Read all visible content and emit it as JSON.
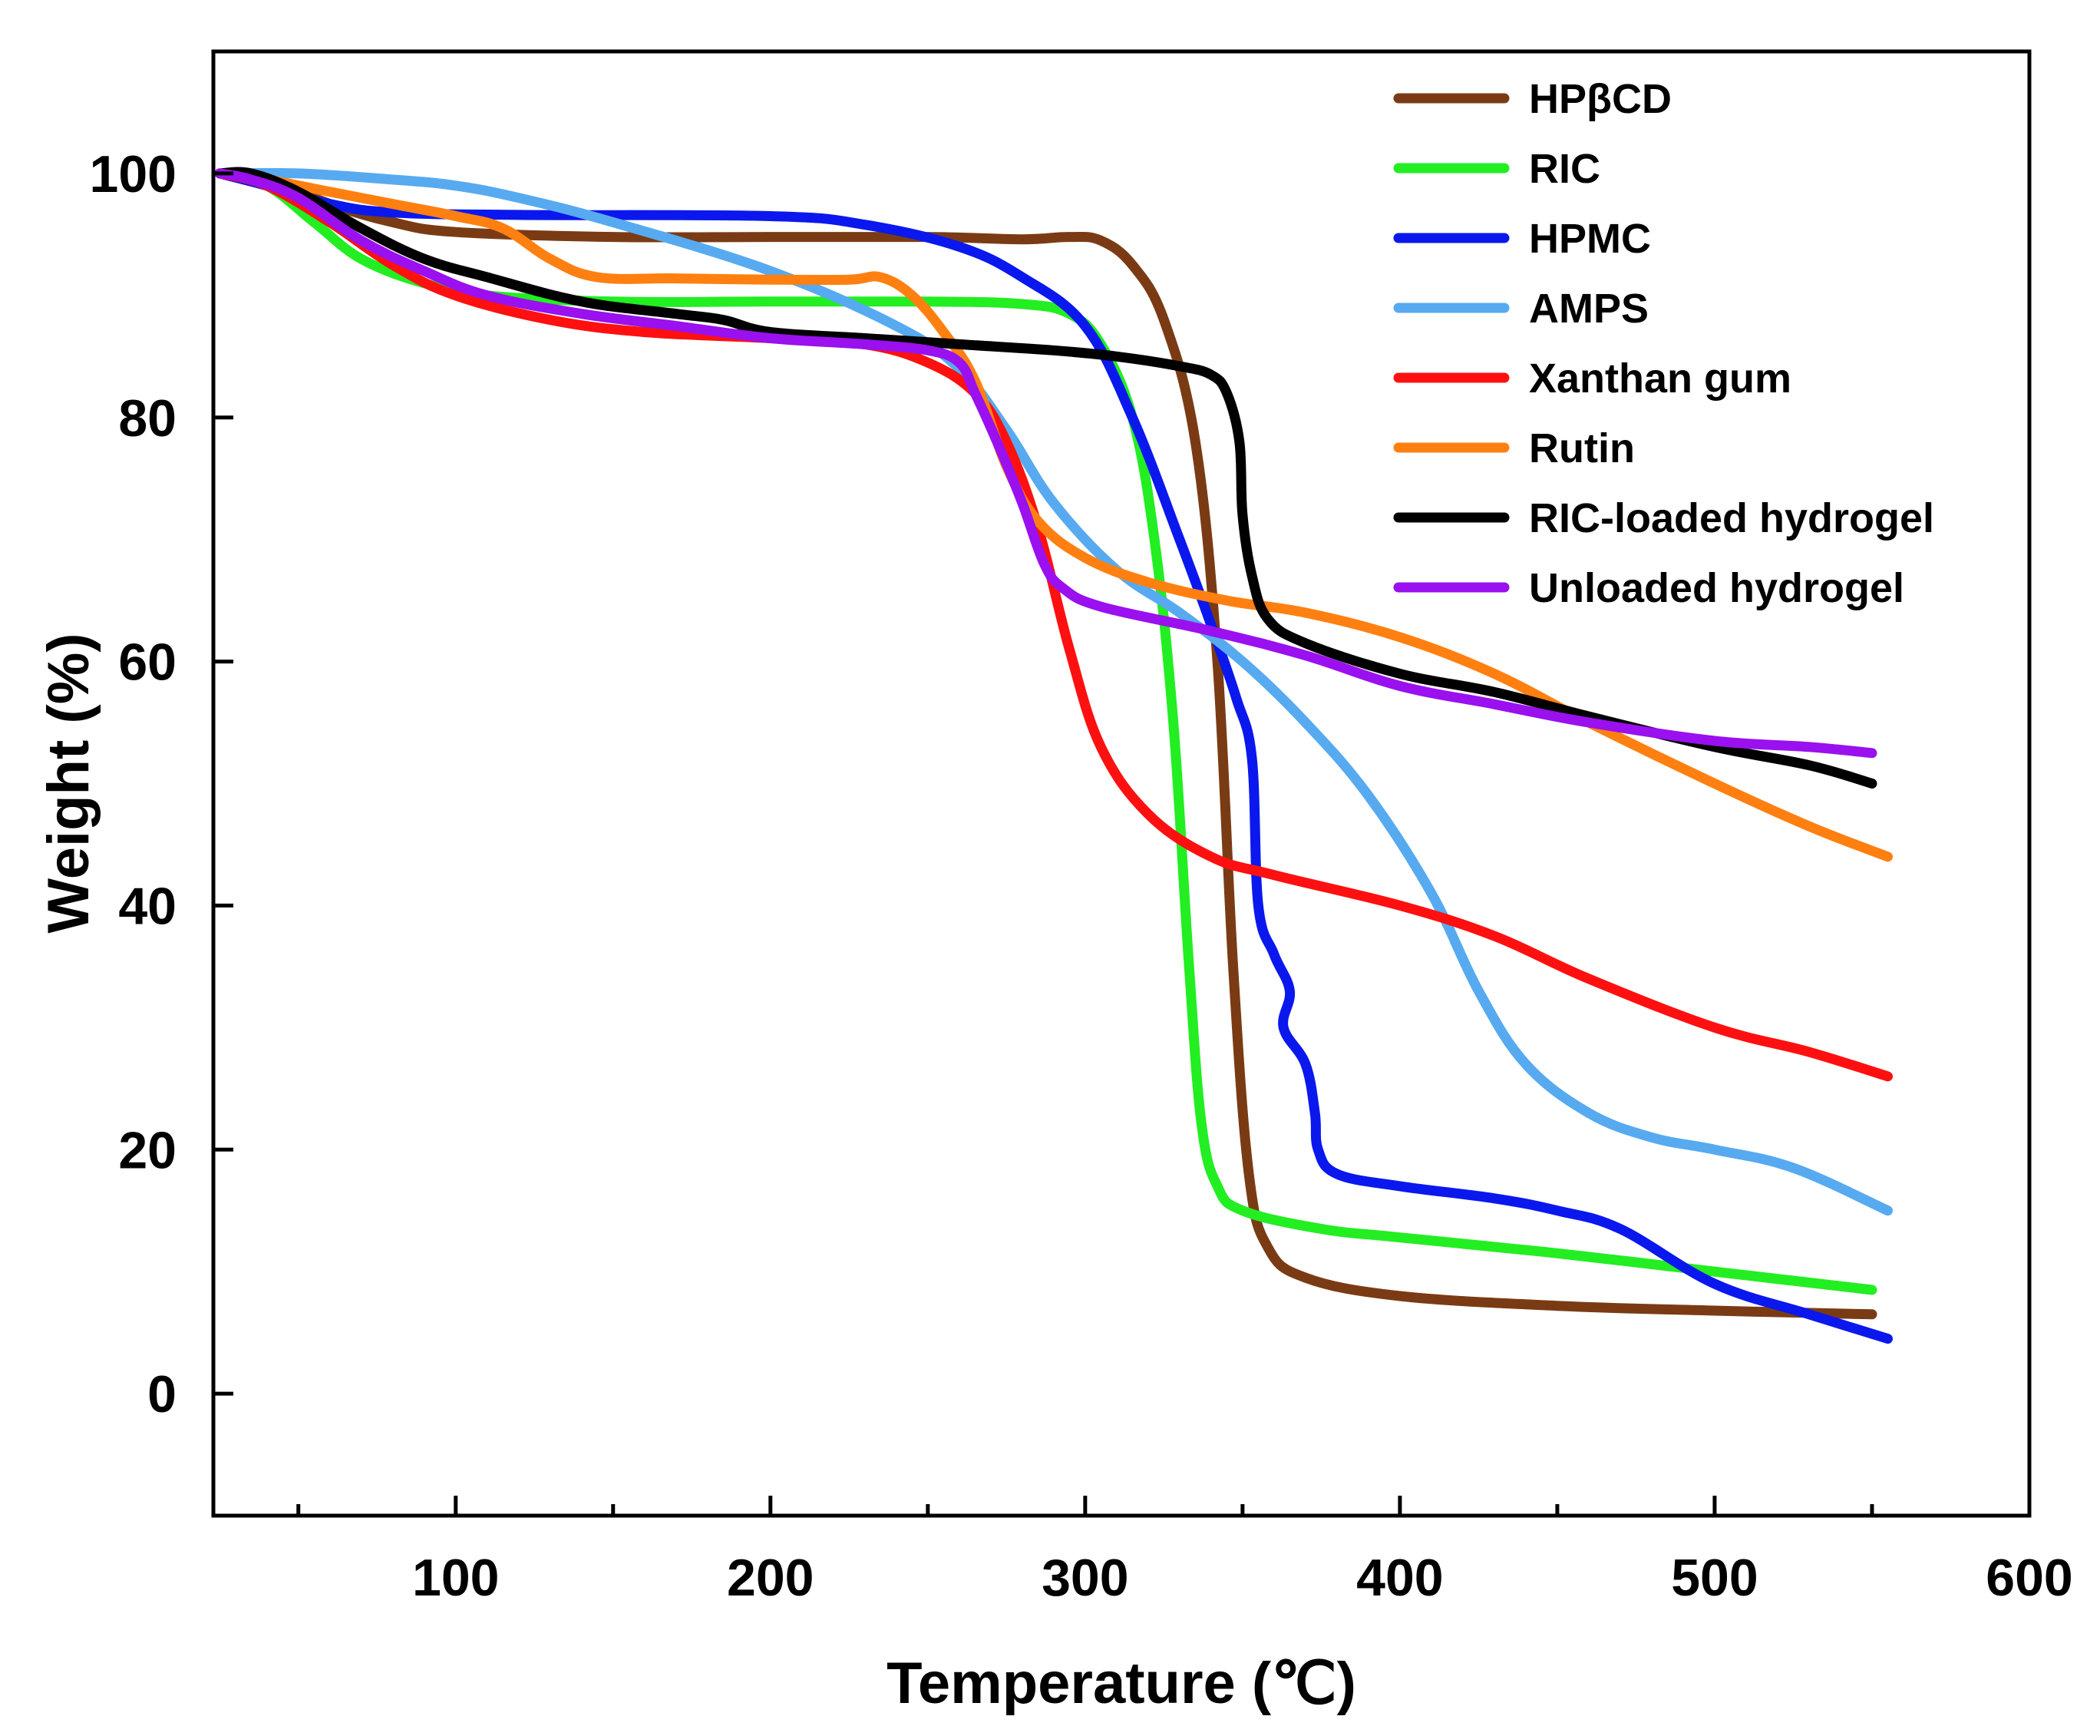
{
  "chart_data": {
    "type": "line",
    "title": "",
    "xlabel": "Temperature (℃)",
    "ylabel": "Weight (%)",
    "xlim": [
      23,
      600
    ],
    "ylim": [
      -10,
      110
    ],
    "xticks": [
      100,
      200,
      300,
      400,
      500,
      600
    ],
    "xminor": [
      50,
      150,
      250,
      350,
      450,
      550
    ],
    "yticks": [
      0,
      20,
      40,
      60,
      80,
      100
    ],
    "legend_position": "top-right",
    "grid": false,
    "series": [
      {
        "name": "HPβCD",
        "color": "#7a3b14",
        "points": [
          [
            25,
            100
          ],
          [
            40,
            99.5
          ],
          [
            60,
            97.5
          ],
          [
            80,
            96
          ],
          [
            100,
            95.2
          ],
          [
            150,
            94.8
          ],
          [
            200,
            94.8
          ],
          [
            250,
            94.8
          ],
          [
            280,
            94.6
          ],
          [
            295,
            94.8
          ],
          [
            305,
            94.5
          ],
          [
            315,
            92.5
          ],
          [
            325,
            88
          ],
          [
            335,
            78
          ],
          [
            342,
            60
          ],
          [
            347,
            35
          ],
          [
            352,
            18
          ],
          [
            358,
            12
          ],
          [
            370,
            9.5
          ],
          [
            400,
            8
          ],
          [
            450,
            7.2
          ],
          [
            500,
            6.8
          ],
          [
            550,
            6.5
          ]
        ]
      },
      {
        "name": "RIC",
        "color": "#22ee22",
        "points": [
          [
            25,
            100
          ],
          [
            40,
            99
          ],
          [
            55,
            96
          ],
          [
            70,
            93
          ],
          [
            90,
            91
          ],
          [
            110,
            90
          ],
          [
            150,
            89.5
          ],
          [
            200,
            89.5
          ],
          [
            250,
            89.5
          ],
          [
            280,
            89.3
          ],
          [
            295,
            88.5
          ],
          [
            305,
            86
          ],
          [
            315,
            80
          ],
          [
            322,
            70
          ],
          [
            328,
            55
          ],
          [
            333,
            35
          ],
          [
            337,
            22
          ],
          [
            342,
            17
          ],
          [
            350,
            15
          ],
          [
            375,
            13.5
          ],
          [
            400,
            12.8
          ],
          [
            450,
            11.5
          ],
          [
            500,
            10
          ],
          [
            550,
            8.5
          ]
        ]
      },
      {
        "name": "HPMC",
        "color": "#0a18ee",
        "points": [
          [
            25,
            100
          ],
          [
            40,
            99
          ],
          [
            60,
            97.5
          ],
          [
            80,
            96.8
          ],
          [
            120,
            96.6
          ],
          [
            200,
            96.5
          ],
          [
            230,
            95.8
          ],
          [
            260,
            94
          ],
          [
            280,
            91.5
          ],
          [
            300,
            87.5
          ],
          [
            315,
            80
          ],
          [
            330,
            70
          ],
          [
            340,
            63
          ],
          [
            348,
            57
          ],
          [
            353,
            52
          ],
          [
            355,
            40
          ],
          [
            360,
            36
          ],
          [
            365,
            33
          ],
          [
            363,
            30
          ],
          [
            370,
            27
          ],
          [
            373,
            23
          ],
          [
            374,
            20
          ],
          [
            380,
            18
          ],
          [
            400,
            17
          ],
          [
            430,
            16
          ],
          [
            450,
            15
          ],
          [
            470,
            13.5
          ],
          [
            500,
            9
          ],
          [
            530,
            6.5
          ],
          [
            555,
            4.5
          ]
        ]
      },
      {
        "name": "AMPS",
        "color": "#57aaf0",
        "points": [
          [
            25,
            100
          ],
          [
            50,
            100
          ],
          [
            80,
            99.5
          ],
          [
            100,
            99
          ],
          [
            120,
            98
          ],
          [
            150,
            96
          ],
          [
            200,
            92
          ],
          [
            240,
            87.5
          ],
          [
            260,
            84
          ],
          [
            275,
            79
          ],
          [
            290,
            73
          ],
          [
            310,
            67.5
          ],
          [
            330,
            64
          ],
          [
            350,
            60
          ],
          [
            370,
            55
          ],
          [
            390,
            49
          ],
          [
            410,
            41
          ],
          [
            425,
            33
          ],
          [
            440,
            27
          ],
          [
            460,
            23
          ],
          [
            480,
            21
          ],
          [
            500,
            20
          ],
          [
            525,
            18.5
          ],
          [
            555,
            15
          ]
        ]
      },
      {
        "name": "Xanthan gum",
        "color": "#ff1010",
        "points": [
          [
            25,
            100
          ],
          [
            40,
            99
          ],
          [
            60,
            96
          ],
          [
            80,
            92.5
          ],
          [
            100,
            90
          ],
          [
            130,
            88
          ],
          [
            160,
            87
          ],
          [
            200,
            86.5
          ],
          [
            230,
            86
          ],
          [
            250,
            84.5
          ],
          [
            265,
            82
          ],
          [
            275,
            78
          ],
          [
            285,
            71
          ],
          [
            295,
            61
          ],
          [
            305,
            53
          ],
          [
            320,
            47.5
          ],
          [
            340,
            44
          ],
          [
            360,
            42.5
          ],
          [
            400,
            40
          ],
          [
            430,
            37.5
          ],
          [
            460,
            34
          ],
          [
            500,
            30
          ],
          [
            530,
            28
          ],
          [
            555,
            26
          ]
        ]
      },
      {
        "name": "Rutin",
        "color": "#ff8010",
        "points": [
          [
            25,
            100
          ],
          [
            40,
            99.5
          ],
          [
            60,
            98.5
          ],
          [
            80,
            97.5
          ],
          [
            100,
            96.5
          ],
          [
            115,
            95.5
          ],
          [
            130,
            93
          ],
          [
            145,
            91.5
          ],
          [
            170,
            91.4
          ],
          [
            200,
            91.3
          ],
          [
            225,
            91.3
          ],
          [
            235,
            91.5
          ],
          [
            245,
            90
          ],
          [
            255,
            87
          ],
          [
            265,
            83
          ],
          [
            275,
            76
          ],
          [
            285,
            71.5
          ],
          [
            300,
            68.5
          ],
          [
            320,
            66.5
          ],
          [
            345,
            65
          ],
          [
            370,
            64
          ],
          [
            400,
            62
          ],
          [
            430,
            59
          ],
          [
            460,
            55
          ],
          [
            500,
            50
          ],
          [
            530,
            46.5
          ],
          [
            555,
            44
          ]
        ]
      },
      {
        "name": "RIC-loaded hydrogel",
        "color": "#000000",
        "points": [
          [
            25,
            100
          ],
          [
            35,
            100
          ],
          [
            50,
            98.5
          ],
          [
            70,
            95.5
          ],
          [
            90,
            93
          ],
          [
            110,
            91.5
          ],
          [
            140,
            89.5
          ],
          [
            170,
            88.5
          ],
          [
            185,
            88
          ],
          [
            200,
            87
          ],
          [
            230,
            86.5
          ],
          [
            260,
            86
          ],
          [
            290,
            85.5
          ],
          [
            310,
            85
          ],
          [
            330,
            84.2
          ],
          [
            340,
            83.5
          ],
          [
            345,
            82
          ],
          [
            349,
            78
          ],
          [
            350,
            72
          ],
          [
            353,
            67
          ],
          [
            358,
            63.5
          ],
          [
            370,
            61.5
          ],
          [
            400,
            59
          ],
          [
            430,
            57.5
          ],
          [
            460,
            55.5
          ],
          [
            500,
            53
          ],
          [
            530,
            51.5
          ],
          [
            550,
            50
          ]
        ]
      },
      {
        "name": "Unloaded hydrogel",
        "color": "#9a10ee",
        "points": [
          [
            25,
            100
          ],
          [
            35,
            99.5
          ],
          [
            50,
            98
          ],
          [
            70,
            94.5
          ],
          [
            90,
            92
          ],
          [
            110,
            90
          ],
          [
            140,
            88.5
          ],
          [
            170,
            87.5
          ],
          [
            200,
            86.5
          ],
          [
            230,
            86
          ],
          [
            250,
            85.5
          ],
          [
            260,
            84.5
          ],
          [
            265,
            82
          ],
          [
            272,
            78
          ],
          [
            280,
            73
          ],
          [
            287,
            68
          ],
          [
            293,
            66
          ],
          [
            305,
            64.5
          ],
          [
            340,
            62.5
          ],
          [
            370,
            60.5
          ],
          [
            400,
            58
          ],
          [
            430,
            56.5
          ],
          [
            460,
            55
          ],
          [
            500,
            53.5
          ],
          [
            530,
            53
          ],
          [
            550,
            52.5
          ]
        ]
      }
    ]
  }
}
